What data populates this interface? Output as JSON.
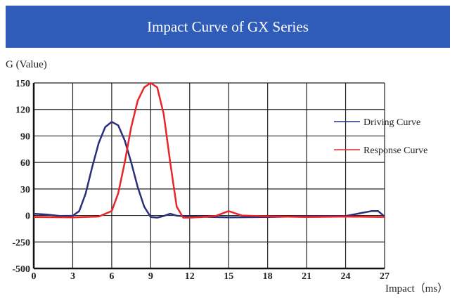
{
  "chart_data": {
    "type": "line",
    "title": "Impact Curve of GX Series",
    "xlabel": "Impact（ms）",
    "ylabel": "G (Value)",
    "xlim": [
      0,
      27
    ],
    "x_ticks": [
      "0",
      "3",
      "6",
      "9",
      "12",
      "15",
      "18",
      "21",
      "24",
      "27"
    ],
    "y_ticks": [
      "150",
      "120",
      "90",
      "60",
      "30",
      "0",
      "-250",
      "-500"
    ],
    "y_tick_values": [
      150,
      120,
      90,
      60,
      30,
      0,
      -250,
      -500
    ],
    "grid": true,
    "legend_position": "right",
    "series": [
      {
        "name": "Driving Curve",
        "color": "#2a2f7a",
        "points": [
          [
            0,
            2
          ],
          [
            1,
            1
          ],
          [
            2,
            -5
          ],
          [
            3,
            -3
          ],
          [
            3.5,
            5
          ],
          [
            4,
            25
          ],
          [
            4.5,
            55
          ],
          [
            5,
            82
          ],
          [
            5.5,
            100
          ],
          [
            6,
            106
          ],
          [
            6.5,
            102
          ],
          [
            7,
            85
          ],
          [
            7.5,
            60
          ],
          [
            8,
            32
          ],
          [
            8.5,
            10
          ],
          [
            9,
            -15
          ],
          [
            9.5,
            -20
          ],
          [
            10,
            -5
          ],
          [
            10.5,
            2
          ],
          [
            11,
            -2
          ],
          [
            12,
            -10
          ],
          [
            13,
            -12
          ],
          [
            15,
            -18
          ],
          [
            18,
            -15
          ],
          [
            21,
            -8
          ],
          [
            24,
            -5
          ],
          [
            26,
            5
          ],
          [
            26.5,
            5
          ],
          [
            27,
            -10
          ]
        ]
      },
      {
        "name": "Response Curve",
        "color": "#e8262a",
        "points": [
          [
            0,
            -15
          ],
          [
            3,
            -18
          ],
          [
            5,
            -10
          ],
          [
            6,
            5
          ],
          [
            6.5,
            25
          ],
          [
            7,
            60
          ],
          [
            7.5,
            100
          ],
          [
            8,
            130
          ],
          [
            8.5,
            145
          ],
          [
            9,
            150
          ],
          [
            9.5,
            145
          ],
          [
            10,
            115
          ],
          [
            10.5,
            60
          ],
          [
            11,
            10
          ],
          [
            11.5,
            -20
          ],
          [
            12,
            -20
          ],
          [
            13,
            -15
          ],
          [
            14,
            -5
          ],
          [
            15,
            5
          ],
          [
            16,
            0
          ],
          [
            18,
            -8
          ],
          [
            21,
            -15
          ],
          [
            24,
            -10
          ],
          [
            27,
            -15
          ]
        ]
      }
    ]
  }
}
